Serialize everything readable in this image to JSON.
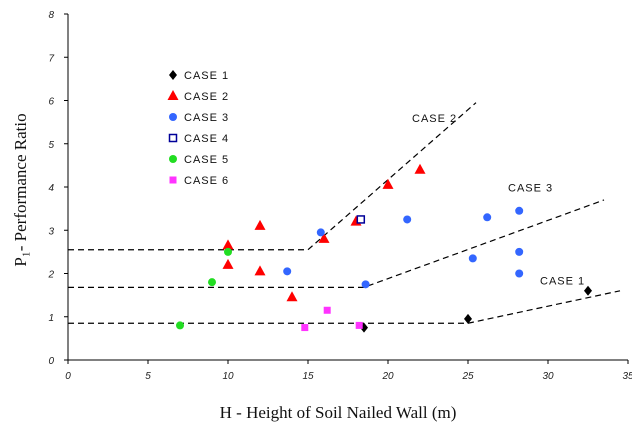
{
  "chart_data": {
    "type": "scatter",
    "xlabel": "H - Height of Soil Nailed Wall (m)",
    "ylabel": "P₁- Performance Ratio",
    "xlim": [
      0,
      35
    ],
    "ylim": [
      0,
      8
    ],
    "xticks": [
      0,
      5,
      10,
      15,
      20,
      25,
      30,
      35
    ],
    "yticks": [
      0,
      1,
      2,
      3,
      4,
      5,
      6,
      7,
      8
    ],
    "grid": false,
    "legend_position": "upper-left",
    "series": [
      {
        "name": "CASE 1",
        "marker": "diamond",
        "color": "#000000",
        "points": [
          [
            18.5,
            0.75
          ],
          [
            25,
            0.95
          ],
          [
            32.5,
            1.6
          ]
        ]
      },
      {
        "name": "CASE 2",
        "marker": "triangle",
        "color": "#ff0000",
        "points": [
          [
            10,
            2.65
          ],
          [
            10,
            2.2
          ],
          [
            12,
            3.1
          ],
          [
            12,
            2.05
          ],
          [
            14,
            1.45
          ],
          [
            16,
            2.8
          ],
          [
            18,
            3.2
          ],
          [
            20,
            4.05
          ],
          [
            22,
            4.4
          ]
        ]
      },
      {
        "name": "CASE 3",
        "marker": "circle",
        "color": "#3366ff",
        "points": [
          [
            13.7,
            2.05
          ],
          [
            15.8,
            2.95
          ],
          [
            18.6,
            1.75
          ],
          [
            21.2,
            3.25
          ],
          [
            25.3,
            2.35
          ],
          [
            26.2,
            3.3
          ],
          [
            28.2,
            3.45
          ],
          [
            28.2,
            2.5
          ],
          [
            28.2,
            2.0
          ]
        ]
      },
      {
        "name": "CASE 4",
        "marker": "open-square",
        "color": "#000099",
        "points": [
          [
            18.3,
            3.25
          ]
        ]
      },
      {
        "name": "CASE 5",
        "marker": "circle",
        "color": "#22dd22",
        "points": [
          [
            7,
            0.8
          ],
          [
            9,
            1.8
          ],
          [
            10,
            2.5
          ]
        ]
      },
      {
        "name": "CASE 6",
        "marker": "square",
        "color": "#ff33ff",
        "points": [
          [
            14.8,
            0.75
          ],
          [
            16.2,
            1.15
          ],
          [
            18.2,
            0.8
          ]
        ]
      }
    ],
    "trend_lines": [
      {
        "label": "CASE 2",
        "points": [
          [
            0,
            2.55
          ],
          [
            15,
            2.55
          ],
          [
            25.5,
            5.95
          ]
        ]
      },
      {
        "label": "CASE 3",
        "points": [
          [
            0,
            1.68
          ],
          [
            18.5,
            1.68
          ],
          [
            33.5,
            3.7
          ]
        ]
      },
      {
        "label": "CASE 1",
        "points": [
          [
            0,
            0.85
          ],
          [
            25,
            0.85
          ],
          [
            34.5,
            1.6
          ]
        ]
      }
    ],
    "annotations": [
      {
        "text": "CASE 2",
        "x": 21.5,
        "y": 5.5
      },
      {
        "text": "CASE 3",
        "x": 27.5,
        "y": 3.9
      },
      {
        "text": "CASE 1",
        "x": 29.5,
        "y": 1.75
      }
    ]
  }
}
